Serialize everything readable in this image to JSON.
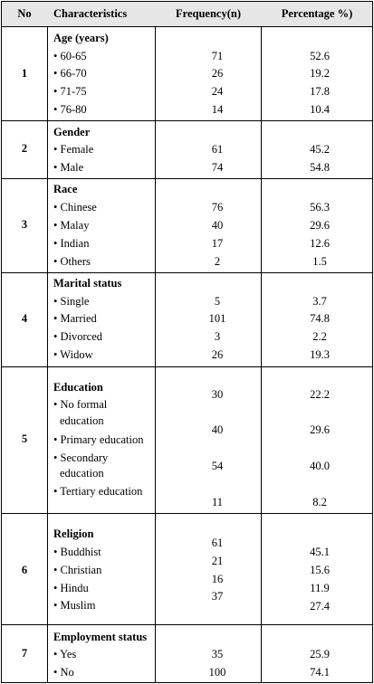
{
  "headers": {
    "no": "No",
    "characteristics": "Characteristics",
    "frequency": "Frequency(n)",
    "percentage": "Percentage %)"
  },
  "bullet": "•",
  "sections": [
    {
      "no": "1",
      "title": "Age (years)",
      "items": [
        {
          "label": "60-65",
          "freq": "71",
          "pct": "52.6"
        },
        {
          "label": "66-70",
          "freq": "26",
          "pct": "19.2"
        },
        {
          "label": "71-75",
          "freq": "24",
          "pct": "17.8"
        },
        {
          "label": "76-80",
          "freq": "14",
          "pct": "10.4"
        }
      ]
    },
    {
      "no": "2",
      "title": "Gender",
      "items": [
        {
          "label": "Female",
          "freq": "61",
          "pct": "45.2"
        },
        {
          "label": "Male",
          "freq": "74",
          "pct": "54.8"
        }
      ]
    },
    {
      "no": "3",
      "title": "Race",
      "items": [
        {
          "label": "Chinese",
          "freq": "76",
          "pct": "56.3"
        },
        {
          "label": "Malay",
          "freq": "40",
          "pct": "29.6"
        },
        {
          "label": "Indian",
          "freq": "17",
          "pct": "12.6"
        },
        {
          "label": "Others",
          "freq": "2",
          "pct": "1.5"
        }
      ]
    },
    {
      "no": "4",
      "title": "Marital status",
      "items": [
        {
          "label": "Single",
          "freq": "5",
          "pct": "3.7"
        },
        {
          "label": "Married",
          "freq": "101",
          "pct": "74.8"
        },
        {
          "label": "Divorced",
          "freq": "3",
          "pct": "2.2"
        },
        {
          "label": "Widow",
          "freq": "26",
          "pct": "19.3"
        }
      ]
    },
    {
      "no": "5",
      "title": "Education",
      "items": [
        {
          "label": [
            "No formal",
            "education"
          ],
          "freq": "30",
          "pct": "22.2"
        },
        {
          "label": [
            "Primary education"
          ],
          "freq": "40",
          "pct": "29.6"
        },
        {
          "label": [
            "Secondary",
            "education"
          ],
          "freq": "54",
          "pct": "40.0"
        },
        {
          "label": [
            "Tertiary education"
          ],
          "freq": "11",
          "pct": "8.2"
        }
      ]
    },
    {
      "no": "6",
      "title": "Religion",
      "items": [
        {
          "label": "Buddhist",
          "freq": "61",
          "pct": "45.1"
        },
        {
          "label": "Christian",
          "freq": "21",
          "pct": "15.6"
        },
        {
          "label": "Hindu",
          "freq": "16",
          "pct": "11.9"
        },
        {
          "label": "Muslim",
          "freq": "37",
          "pct": "27.4"
        }
      ]
    },
    {
      "no": "7",
      "title": "Employment status",
      "items": [
        {
          "label": "Yes",
          "freq": "35",
          "pct": "25.9"
        },
        {
          "label": "No",
          "freq": "100",
          "pct": "74.1"
        }
      ]
    }
  ]
}
